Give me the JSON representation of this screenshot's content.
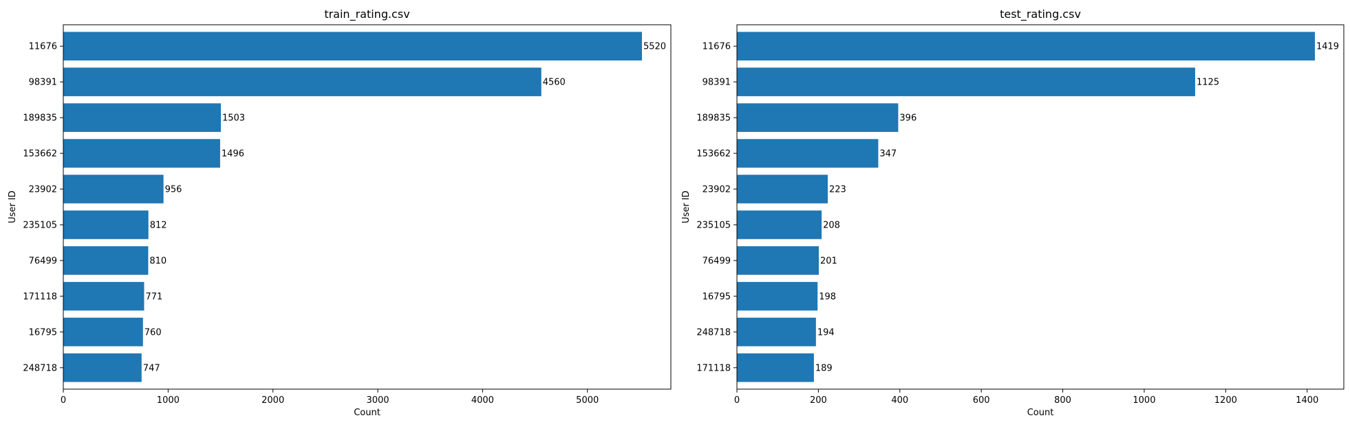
{
  "chart_data": [
    {
      "type": "bar",
      "orientation": "horizontal",
      "title": "train_rating.csv",
      "xlabel": "Count",
      "ylabel": "User ID",
      "categories": [
        "11676",
        "98391",
        "189835",
        "153662",
        "23902",
        "235105",
        "76499",
        "171118",
        "16795",
        "248718"
      ],
      "values": [
        5520,
        4560,
        1503,
        1496,
        956,
        812,
        810,
        771,
        760,
        747
      ],
      "xlim": [
        0,
        5796
      ],
      "xticks": [
        0,
        1000,
        2000,
        3000,
        4000,
        5000
      ],
      "bar_color": "#1f77b4",
      "grid": false,
      "legend": "none"
    },
    {
      "type": "bar",
      "orientation": "horizontal",
      "title": "test_rating.csv",
      "xlabel": "Count",
      "ylabel": "User ID",
      "categories": [
        "11676",
        "98391",
        "189835",
        "153662",
        "23902",
        "235105",
        "76499",
        "16795",
        "248718",
        "171118"
      ],
      "values": [
        1419,
        1125,
        396,
        347,
        223,
        208,
        201,
        198,
        194,
        189
      ],
      "xlim": [
        0,
        1490
      ],
      "xticks": [
        0,
        200,
        400,
        600,
        800,
        1000,
        1200,
        1400
      ],
      "bar_color": "#1f77b4",
      "grid": false,
      "legend": "none"
    }
  ]
}
